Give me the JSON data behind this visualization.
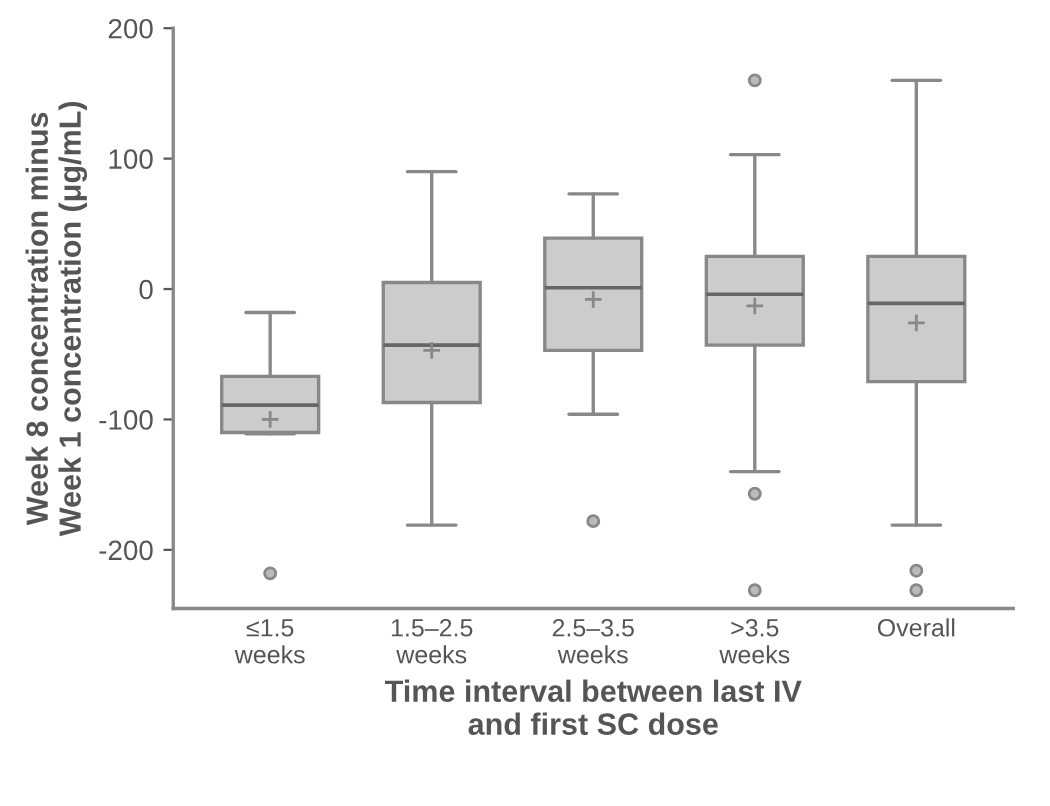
{
  "chart_data": {
    "type": "box",
    "xlabel": "Time interval between last IV\nand first SC dose",
    "ylabel": "Week 8 concentration minus\nWeek 1 concentration (μg/mL)",
    "categories": [
      "≤1.5\nweeks",
      "1.5–2.5\nweeks",
      "2.5–3.5\nweeks",
      ">3.5\nweeks",
      "Overall"
    ],
    "boxes": [
      {
        "low": -111,
        "q1": -110,
        "median": -89,
        "q3": -67,
        "high": -18,
        "mean": -100,
        "outliers": [
          -218
        ]
      },
      {
        "low": -181,
        "q1": -87,
        "median": -43,
        "q3": 5,
        "high": 90,
        "mean": -47
      },
      {
        "low": -96,
        "q1": -47,
        "median": 1,
        "q3": 39,
        "high": 73,
        "mean": -8,
        "outliers": [
          -178
        ]
      },
      {
        "low": -140,
        "q1": -43,
        "median": -4,
        "q3": 25,
        "high": 103,
        "mean": -13,
        "outliers": [
          160,
          -157,
          -231
        ]
      },
      {
        "low": -181,
        "q1": -71,
        "median": -11,
        "q3": 25,
        "high": 160,
        "mean": -26,
        "outliers": [
          -216,
          -231
        ]
      }
    ],
    "color": "#cccccc",
    "ylim": [
      -245,
      200
    ],
    "yticks": [
      {
        "value": 200,
        "label": "200"
      },
      {
        "value": 100,
        "label": "100"
      },
      {
        "value": 0,
        "label": "0"
      },
      {
        "value": -100,
        "label": "-100"
      },
      {
        "value": -200,
        "label": "-200"
      }
    ],
    "grid": false
  }
}
